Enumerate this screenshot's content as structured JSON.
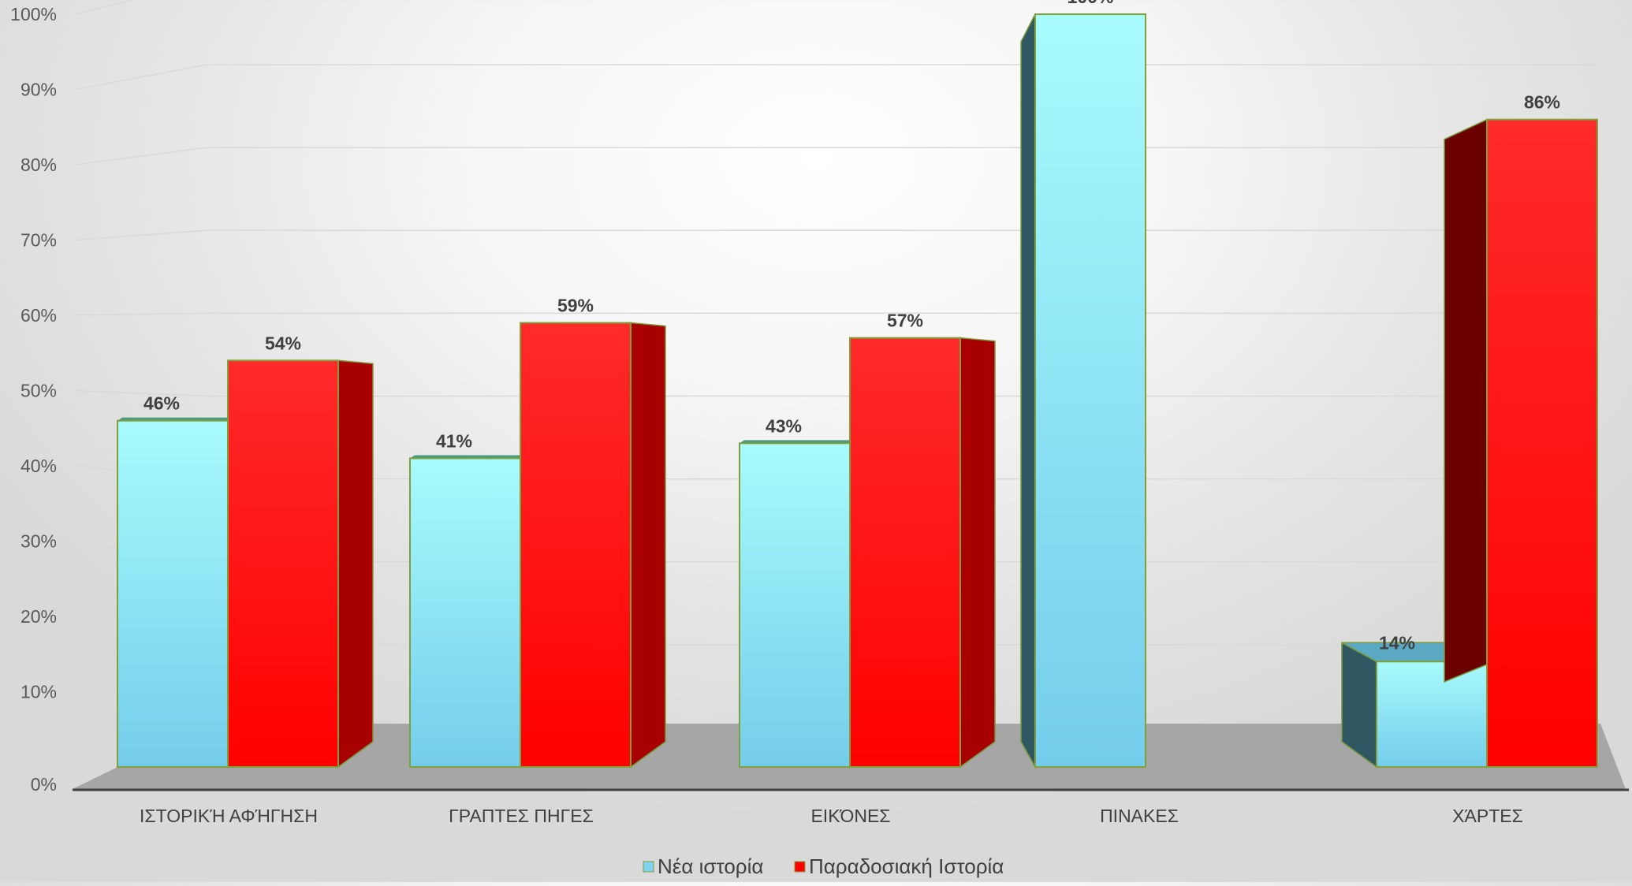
{
  "chart_data": {
    "type": "bar",
    "style": "3d-clustered-column",
    "categories": [
      "ΙΣΤΟΡΙΚΉ ΑΦΉΓΗΣΗ",
      "ΓΡΑΠΤΕΣ ΠΗΓΕΣ",
      "ΕΙΚΌΝΕΣ",
      "ΠΙΝΑΚΕΣ",
      "ΧΆΡΤΕΣ"
    ],
    "series": [
      {
        "name": "Νέα ιστορία",
        "color": "#7DD3F0",
        "values": [
          46,
          41,
          43,
          100,
          14
        ],
        "labels": [
          "46%",
          "41%",
          "43%",
          "100%",
          "14%"
        ]
      },
      {
        "name": "Παραδοσιακή Ιστορία",
        "color": "#FF0000",
        "values": [
          54,
          59,
          57,
          0,
          86
        ],
        "labels": [
          "54%",
          "59%",
          "57%",
          "",
          "86%"
        ]
      }
    ],
    "y_ticks": [
      "0%",
      "10%",
      "20%",
      "30%",
      "40%",
      "50%",
      "60%",
      "70%",
      "80%",
      "90%",
      "100%"
    ],
    "ylim": [
      0,
      100
    ],
    "title": "",
    "xlabel": "",
    "ylabel": "",
    "grid": true,
    "legend": "bottom-center"
  }
}
